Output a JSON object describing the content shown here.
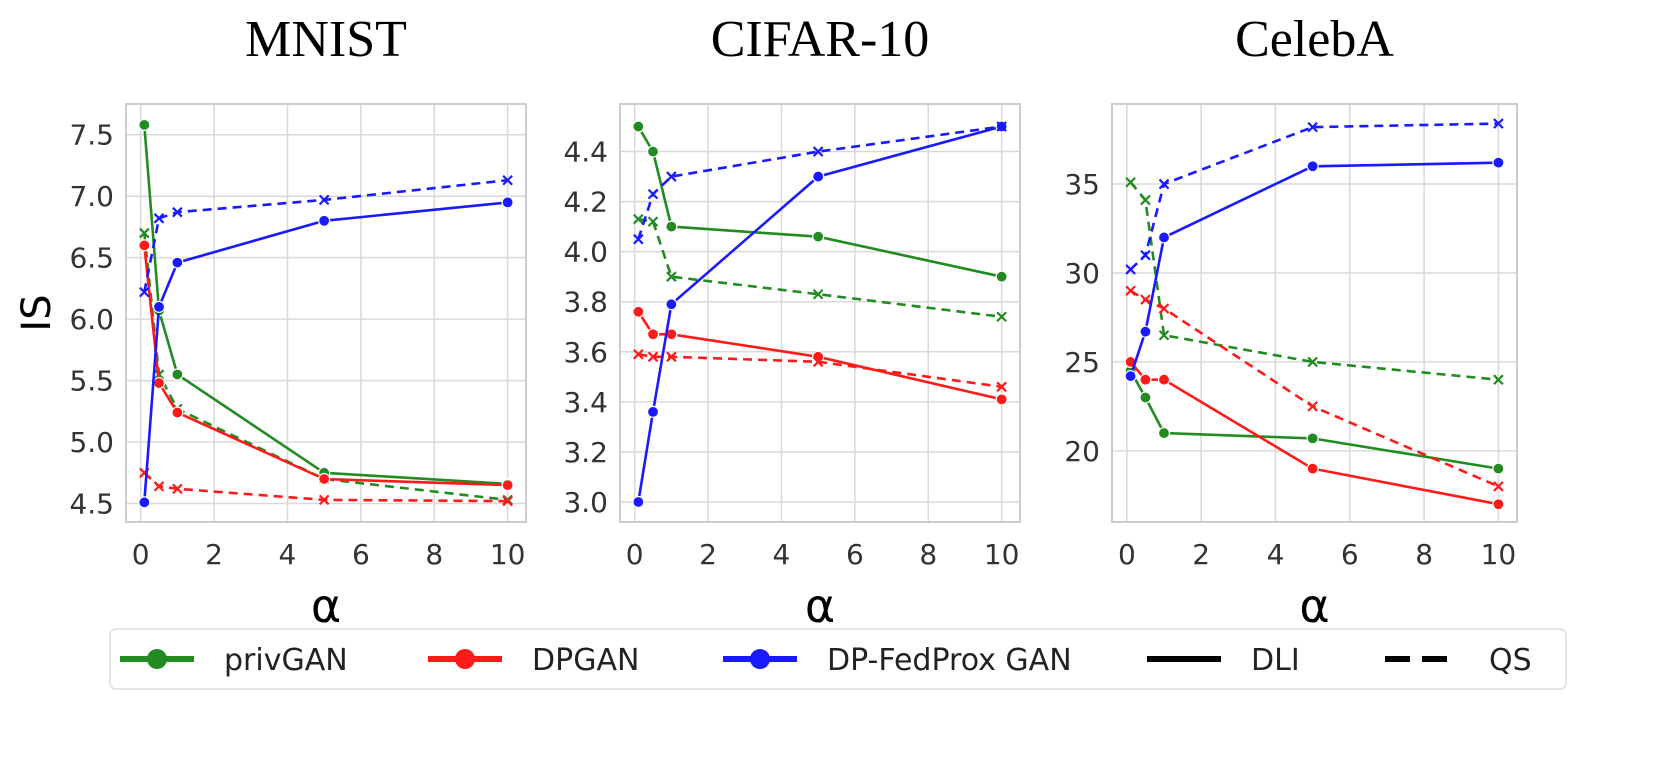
{
  "chart_data": [
    {
      "type": "line",
      "title": "MNIST",
      "xlabel": "α",
      "ylabel": "IS",
      "x": [
        0.1,
        0.5,
        1,
        5,
        10
      ],
      "xlim": [
        -0.4,
        10.5
      ],
      "ylim": [
        4.35,
        7.75
      ],
      "xticks": [
        0,
        2,
        4,
        6,
        8,
        10
      ],
      "yticks": [
        4.5,
        5.0,
        5.5,
        6.0,
        6.5,
        7.0,
        7.5
      ],
      "ytick_labels": [
        "4.5",
        "5.0",
        "5.5",
        "6.0",
        "6.5",
        "7.0",
        "7.5"
      ],
      "series": [
        {
          "name": "privGAN",
          "method": "DLI",
          "values": [
            7.58,
            6.07,
            5.55,
            4.75,
            4.66
          ]
        },
        {
          "name": "privGAN",
          "method": "QS",
          "values": [
            6.7,
            5.55,
            5.27,
            4.7,
            4.53
          ]
        },
        {
          "name": "DPGAN",
          "method": "DLI",
          "values": [
            6.6,
            5.48,
            5.24,
            4.7,
            4.65
          ]
        },
        {
          "name": "DPGAN",
          "method": "QS",
          "values": [
            4.75,
            4.64,
            4.62,
            4.53,
            4.52
          ]
        },
        {
          "name": "DP-FedProx GAN",
          "method": "DLI",
          "values": [
            4.51,
            6.1,
            6.46,
            6.8,
            6.95
          ]
        },
        {
          "name": "DP-FedProx GAN",
          "method": "QS",
          "values": [
            6.22,
            6.82,
            6.87,
            6.97,
            7.13
          ]
        }
      ]
    },
    {
      "type": "line",
      "title": "CIFAR-10",
      "xlabel": "α",
      "ylabel": "",
      "x": [
        0.1,
        0.5,
        1,
        5,
        10
      ],
      "xlim": [
        -0.4,
        10.5
      ],
      "ylim": [
        2.92,
        4.59
      ],
      "xticks": [
        0,
        2,
        4,
        6,
        8,
        10
      ],
      "yticks": [
        3.0,
        3.2,
        3.4,
        3.6,
        3.8,
        4.0,
        4.2,
        4.4
      ],
      "ytick_labels": [
        "3.0",
        "3.2",
        "3.4",
        "3.6",
        "3.8",
        "4.0",
        "4.2",
        "4.4"
      ],
      "series": [
        {
          "name": "privGAN",
          "method": "DLI",
          "values": [
            4.5,
            4.4,
            4.1,
            4.06,
            3.9
          ]
        },
        {
          "name": "privGAN",
          "method": "QS",
          "values": [
            4.13,
            4.12,
            3.9,
            3.83,
            3.74
          ]
        },
        {
          "name": "DPGAN",
          "method": "DLI",
          "values": [
            3.76,
            3.67,
            3.67,
            3.58,
            3.41
          ]
        },
        {
          "name": "DPGAN",
          "method": "QS",
          "values": [
            3.59,
            3.58,
            3.58,
            3.56,
            3.46
          ]
        },
        {
          "name": "DP-FedProx GAN",
          "method": "DLI",
          "values": [
            3.0,
            3.36,
            3.79,
            4.3,
            4.5
          ]
        },
        {
          "name": "DP-FedProx GAN",
          "method": "QS",
          "values": [
            4.05,
            4.23,
            4.3,
            4.4,
            4.5
          ]
        }
      ]
    },
    {
      "type": "line",
      "title": "CelebA",
      "xlabel": "α",
      "ylabel": "",
      "x": [
        0.1,
        0.5,
        1,
        5,
        10
      ],
      "xlim": [
        -0.4,
        10.5
      ],
      "ylim": [
        16.0,
        39.5
      ],
      "xticks": [
        0,
        2,
        4,
        6,
        8,
        10
      ],
      "yticks": [
        20,
        25,
        30,
        35
      ],
      "ytick_labels": [
        "20",
        "25",
        "30",
        "35"
      ],
      "series": [
        {
          "name": "privGAN",
          "method": "DLI",
          "values": [
            24.5,
            23.0,
            21.0,
            20.7,
            19.0
          ]
        },
        {
          "name": "privGAN",
          "method": "QS",
          "values": [
            35.1,
            34.1,
            26.5,
            25.0,
            24.0
          ]
        },
        {
          "name": "DPGAN",
          "method": "DLI",
          "values": [
            25.0,
            24.0,
            24.0,
            19.0,
            17.0
          ]
        },
        {
          "name": "DPGAN",
          "method": "QS",
          "values": [
            29.0,
            28.5,
            28.0,
            22.5,
            18.0
          ]
        },
        {
          "name": "DP-FedProx GAN",
          "method": "DLI",
          "values": [
            24.2,
            26.7,
            32.0,
            36.0,
            36.2
          ]
        },
        {
          "name": "DP-FedProx GAN",
          "method": "QS",
          "values": [
            30.2,
            31.0,
            35.0,
            38.2,
            38.4
          ]
        }
      ]
    }
  ],
  "colors": {
    "privGAN": "#228b22",
    "DPGAN": "#ff1a1a",
    "DP-FedProx GAN": "#1a1aff"
  },
  "legend": {
    "placement": "bottom",
    "entries": [
      {
        "label": "privGAN",
        "kind": "color",
        "color": "#228b22"
      },
      {
        "label": "DPGAN",
        "kind": "color",
        "color": "#ff1a1a"
      },
      {
        "label": "DP-FedProx GAN",
        "kind": "color",
        "color": "#1a1aff"
      },
      {
        "label": "DLI",
        "kind": "style",
        "style": "solid"
      },
      {
        "label": "QS",
        "kind": "style",
        "style": "dashed"
      }
    ]
  }
}
